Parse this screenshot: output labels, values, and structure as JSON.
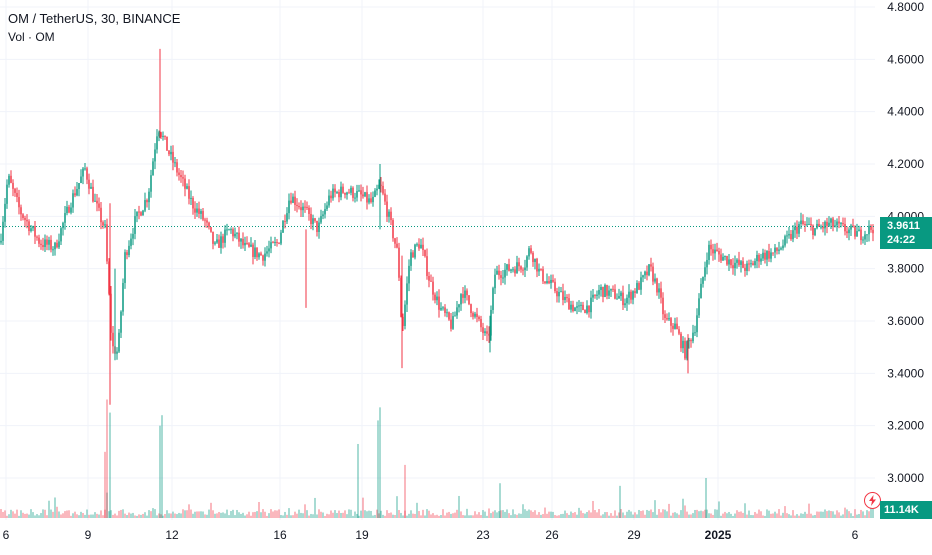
{
  "legend": {
    "symbol": "OM / TetherUS, 30, BINANCE",
    "volume_label": "Vol · OM"
  },
  "price_badge": {
    "price": "3.9611",
    "countdown": "24:22"
  },
  "volume_badge": "11.14K",
  "colors": {
    "up": "#089981",
    "down": "#f23645",
    "grid": "#f0f3fa",
    "text": "#131722",
    "price_line": "#089981"
  },
  "chart_data": {
    "type": "candlestick",
    "symbol": "OM / TetherUS",
    "interval": "30",
    "exchange": "BINANCE",
    "last_price": 3.9611,
    "y_ticks": [
      "4.8000",
      "4.6000",
      "4.4000",
      "4.2000",
      "4.0000",
      "3.8000",
      "3.6000",
      "3.4000",
      "3.2000",
      "3.0000"
    ],
    "ylim": [
      2.9,
      4.8
    ],
    "x_ticks": [
      "6",
      "9",
      "12",
      "16",
      "19",
      "23",
      "26",
      "29",
      "2025",
      "6"
    ],
    "path": [
      [
        0,
        3.9
      ],
      [
        8,
        4.15
      ],
      [
        20,
        4.02
      ],
      [
        40,
        3.9
      ],
      [
        55,
        3.88
      ],
      [
        70,
        4.05
      ],
      [
        85,
        4.18
      ],
      [
        95,
        4.05
      ],
      [
        105,
        3.95
      ],
      [
        112,
        3.5
      ],
      [
        118,
        3.48
      ],
      [
        125,
        3.85
      ],
      [
        135,
        3.98
      ],
      [
        148,
        4.08
      ],
      [
        158,
        4.35
      ],
      [
        168,
        4.25
      ],
      [
        180,
        4.15
      ],
      [
        192,
        4.05
      ],
      [
        205,
        3.98
      ],
      [
        215,
        3.88
      ],
      [
        230,
        3.95
      ],
      [
        245,
        3.88
      ],
      [
        262,
        3.85
      ],
      [
        278,
        3.9
      ],
      [
        290,
        4.08
      ],
      [
        305,
        4.02
      ],
      [
        318,
        3.95
      ],
      [
        330,
        4.08
      ],
      [
        345,
        4.1
      ],
      [
        360,
        4.08
      ],
      [
        372,
        4.05
      ],
      [
        380,
        4.12
      ],
      [
        390,
        3.98
      ],
      [
        398,
        3.85
      ],
      [
        402,
        3.55
      ],
      [
        410,
        3.85
      ],
      [
        420,
        3.9
      ],
      [
        430,
        3.75
      ],
      [
        440,
        3.65
      ],
      [
        452,
        3.58
      ],
      [
        462,
        3.72
      ],
      [
        475,
        3.62
      ],
      [
        488,
        3.52
      ],
      [
        495,
        3.78
      ],
      [
        510,
        3.8
      ],
      [
        525,
        3.82
      ],
      [
        530,
        3.88
      ],
      [
        540,
        3.78
      ],
      [
        555,
        3.72
      ],
      [
        565,
        3.68
      ],
      [
        578,
        3.64
      ],
      [
        590,
        3.66
      ],
      [
        600,
        3.72
      ],
      [
        615,
        3.7
      ],
      [
        625,
        3.68
      ],
      [
        640,
        3.74
      ],
      [
        650,
        3.8
      ],
      [
        658,
        3.72
      ],
      [
        665,
        3.6
      ],
      [
        675,
        3.58
      ],
      [
        685,
        3.48
      ],
      [
        695,
        3.58
      ],
      [
        700,
        3.7
      ],
      [
        708,
        3.88
      ],
      [
        720,
        3.85
      ],
      [
        735,
        3.82
      ],
      [
        748,
        3.8
      ],
      [
        760,
        3.85
      ],
      [
        775,
        3.86
      ],
      [
        790,
        3.92
      ],
      [
        800,
        3.97
      ],
      [
        815,
        3.95
      ],
      [
        830,
        3.97
      ],
      [
        845,
        3.95
      ],
      [
        860,
        3.93
      ],
      [
        874,
        3.96
      ]
    ],
    "volume_spikes": [
      [
        110,
        3.25
      ],
      [
        107,
        3.3
      ],
      [
        105,
        3.1
      ],
      [
        162,
        3.24
      ],
      [
        160,
        3.2
      ],
      [
        380,
        3.27
      ],
      [
        378,
        3.22
      ],
      [
        358,
        3.13
      ],
      [
        405,
        3.05
      ],
      [
        706,
        3.0
      ],
      [
        620,
        2.97
      ],
      [
        500,
        2.98
      ]
    ]
  }
}
